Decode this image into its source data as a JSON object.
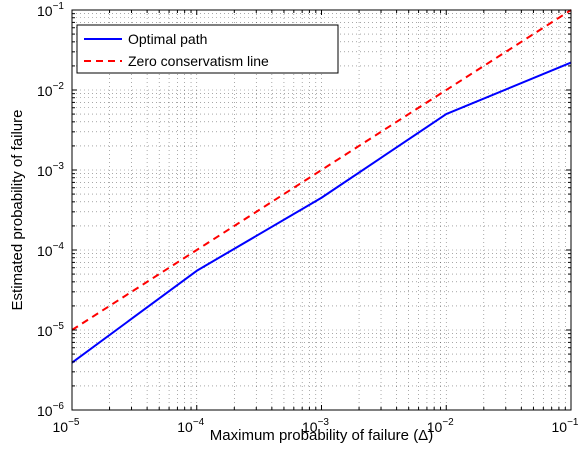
{
  "chart_data": {
    "type": "line",
    "xscale": "log",
    "yscale": "log",
    "xlabel": "Maximum probability of failure (Δ)",
    "ylabel": "Estimated probability of failure",
    "xlim": [
      1e-05,
      0.1
    ],
    "ylim": [
      1e-06,
      0.1
    ],
    "x_ticks": [
      {
        "base": "10",
        "exp": "−5",
        "value": 1e-05
      },
      {
        "base": "10",
        "exp": "−4",
        "value": 0.0001
      },
      {
        "base": "10",
        "exp": "−3",
        "value": 0.001
      },
      {
        "base": "10",
        "exp": "−2",
        "value": 0.01
      },
      {
        "base": "10",
        "exp": "−1",
        "value": 0.1
      }
    ],
    "y_ticks": [
      {
        "base": "10",
        "exp": "−6",
        "value": 1e-06
      },
      {
        "base": "10",
        "exp": "−5",
        "value": 1e-05
      },
      {
        "base": "10",
        "exp": "−4",
        "value": 0.0001
      },
      {
        "base": "10",
        "exp": "−3",
        "value": 0.001
      },
      {
        "base": "10",
        "exp": "−2",
        "value": 0.01
      },
      {
        "base": "10",
        "exp": "−1",
        "value": 0.1
      }
    ],
    "grid": true,
    "legend_position": "top-left",
    "series": [
      {
        "name": "Optimal path",
        "color": "#0000ff",
        "dash": "solid",
        "x": [
          1e-05,
          0.0001,
          0.001,
          0.01,
          0.1
        ],
        "y": [
          3.9e-06,
          5.5e-05,
          0.00045,
          0.005,
          0.022
        ]
      },
      {
        "name": "Zero conservatism line",
        "color": "#ff0000",
        "dash": "dashed",
        "x": [
          1e-05,
          0.1
        ],
        "y": [
          1e-05,
          0.1
        ]
      }
    ]
  }
}
